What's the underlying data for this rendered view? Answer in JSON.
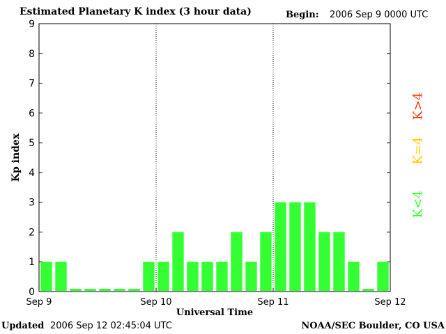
{
  "header": {
    "title": "Estimated Planetary K index (3 hour data)",
    "begin_label": "Begin:",
    "begin_value": "2006 Sep 9 0000 UTC"
  },
  "footer": {
    "updated_label": "Updated",
    "updated_value": "2006 Sep 12 02:45:04 UTC",
    "source": "NOAA/SEC Boulder, CO USA"
  },
  "legend": {
    "high": {
      "label": "K>4",
      "color": "#ff3300"
    },
    "equal": {
      "label": "K=4",
      "color": "#ffcc00"
    },
    "low": {
      "label": "K<4",
      "color": "#33ff33"
    }
  },
  "chart_data": {
    "type": "bar",
    "title": "Estimated Planetary K index (3 hour data)",
    "xlabel": "Universal Time",
    "ylabel": "Kp index",
    "ylim": [
      0,
      9
    ],
    "yticks": [
      "0",
      "1",
      "2",
      "3",
      "4",
      "5",
      "6",
      "7",
      "8",
      "9"
    ],
    "xticks": [
      "Sep 9",
      "Sep 10",
      "Sep 11",
      "Sep 12"
    ],
    "values": [
      1,
      1,
      0,
      0,
      0,
      0,
      0,
      1,
      1,
      2,
      1,
      1,
      1,
      2,
      1,
      2,
      3,
      3,
      3,
      2,
      2,
      1,
      0,
      1
    ],
    "bar_color": "#33ff33",
    "day_separators": "dotted"
  }
}
